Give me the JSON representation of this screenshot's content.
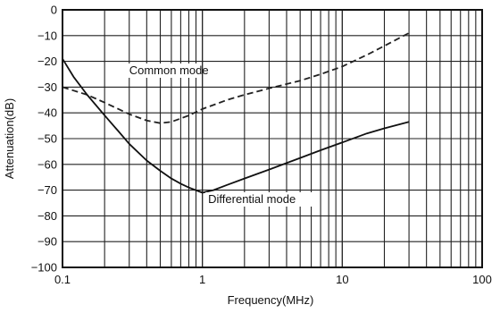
{
  "chart_data": {
    "type": "line",
    "xlabel": "Frequency(MHz)",
    "ylabel": "Attenuation(dB)",
    "x_scale": "log",
    "xlim": [
      0.1,
      100
    ],
    "ylim": [
      -100,
      0
    ],
    "x_ticks": [
      0.1,
      1,
      10,
      100
    ],
    "x_tick_labels": [
      "0.1",
      "1",
      "10",
      "100"
    ],
    "y_ticks": [
      0,
      -10,
      -20,
      -30,
      -40,
      -50,
      -60,
      -70,
      -80,
      -90,
      -100
    ],
    "y_tick_labels": [
      "0",
      "−10",
      "−20",
      "−30",
      "−40",
      "−50",
      "−60",
      "−70",
      "−80",
      "−90",
      "−100"
    ],
    "grid": true,
    "series": [
      {
        "name": "Common mode",
        "style": "dashed",
        "color": "#222222",
        "x": [
          0.1,
          0.15,
          0.2,
          0.3,
          0.4,
          0.5,
          0.6,
          0.8,
          1,
          1.5,
          2,
          3,
          5,
          7,
          10,
          15,
          20,
          30
        ],
        "y": [
          -30,
          -33,
          -36,
          -40.5,
          -43,
          -44,
          -43.5,
          -41,
          -38.5,
          -35,
          -33,
          -30.5,
          -27.5,
          -25,
          -22,
          -17.5,
          -14,
          -9
        ]
      },
      {
        "name": "Differential mode",
        "style": "solid",
        "color": "#111111",
        "x": [
          0.1,
          0.12,
          0.15,
          0.2,
          0.25,
          0.3,
          0.4,
          0.5,
          0.6,
          0.7,
          0.8,
          1,
          1.2,
          1.5,
          2,
          3,
          5,
          7,
          10,
          15,
          20,
          30
        ],
        "y": [
          -19,
          -26,
          -33,
          -41,
          -47,
          -52,
          -58.5,
          -62.5,
          -65.5,
          -67.5,
          -69,
          -71,
          -70,
          -68,
          -65.5,
          -62,
          -57.5,
          -54.5,
          -51.5,
          -48,
          -46,
          -43.5
        ]
      }
    ],
    "annotations": [
      {
        "text": "Common mode",
        "x": 0.3,
        "y": -25
      },
      {
        "text": "Differential mode",
        "x": 1.1,
        "y": -75
      }
    ]
  }
}
